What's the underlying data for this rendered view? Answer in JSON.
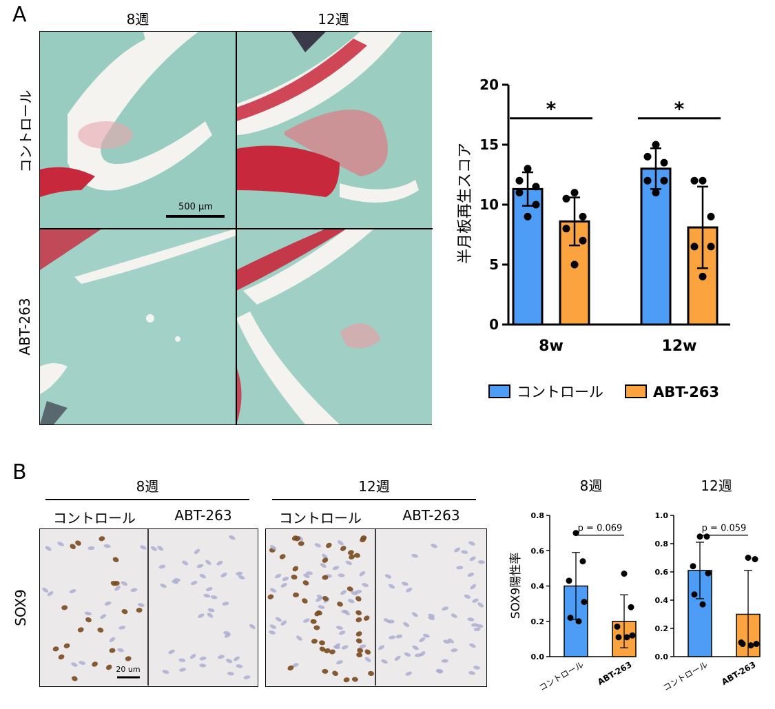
{
  "panel_a": {
    "letter": "A",
    "col_labels": [
      "8週",
      "12週"
    ],
    "row_labels": [
      "コントロール",
      "ABT-263"
    ],
    "scale_bar": "500 µm"
  },
  "panel_b": {
    "letter": "B",
    "group_labels": [
      "8週",
      "12週"
    ],
    "sub_labels": [
      "コントロール",
      "ABT-263",
      "コントロール",
      "ABT-263"
    ],
    "row_label": "SOX9",
    "scale_bar": "20 um"
  },
  "colors": {
    "control": "#4d9df7",
    "abt": "#fba43f",
    "safranin_red": "#c8283c",
    "fast_green": "#8cc7bc"
  },
  "chart_data": [
    {
      "type": "bar",
      "ylabel": "半月板再生スコア",
      "categories": [
        "8w",
        "12w"
      ],
      "ylim": [
        0,
        20
      ],
      "yticks": [
        0,
        5,
        10,
        15,
        20
      ],
      "series": [
        {
          "name": "コントロール",
          "values": [
            11.3,
            13.0
          ],
          "sd": [
            1.4,
            1.7
          ],
          "points": [
            [
              13,
              12,
              11.5,
              11,
              10,
              9
            ],
            [
              15,
              14,
              13.5,
              12,
              12,
              11
            ]
          ]
        },
        {
          "name": "ABT-263",
          "values": [
            8.6,
            8.1
          ],
          "sd": [
            2.0,
            3.4
          ],
          "points": [
            [
              11,
              10.5,
              9,
              8,
              7,
              5
            ],
            [
              12,
              12,
              9,
              6.5,
              6.5,
              4
            ]
          ]
        }
      ],
      "significance": [
        "*",
        "*"
      ],
      "legend": [
        "コントロール",
        "ABT-263"
      ]
    },
    {
      "type": "bar",
      "title": "8週",
      "ylabel": "SOX9陽性率",
      "categories": [
        "コントロール",
        "ABT-263"
      ],
      "ylim": [
        0,
        0.8
      ],
      "yticks": [
        "0.0",
        "0.2",
        "0.4",
        "0.6",
        "0.8"
      ],
      "values": [
        0.4,
        0.2
      ],
      "sd": [
        0.19,
        0.15
      ],
      "points": [
        [
          0.7,
          0.54,
          0.43,
          0.31,
          0.22,
          0.2
        ],
        [
          0.47,
          0.28,
          0.17,
          0.12,
          0.11,
          0.11
        ]
      ],
      "annotation": "p = 0.069"
    },
    {
      "type": "bar",
      "title": "12週",
      "categories": [
        "コントロール",
        "ABT-263"
      ],
      "ylim": [
        0,
        1.0
      ],
      "yticks": [
        "0.0",
        "0.2",
        "0.4",
        "0.6",
        "0.8",
        "1.0"
      ],
      "values": [
        0.61,
        0.3
      ],
      "sd": [
        0.2,
        0.31
      ],
      "points": [
        [
          0.85,
          0.85,
          0.64,
          0.59,
          0.44,
          0.37
        ],
        [
          0.7,
          0.69,
          0.1,
          0.09,
          0.09,
          0.08
        ]
      ],
      "annotation": "p = 0.059"
    }
  ]
}
